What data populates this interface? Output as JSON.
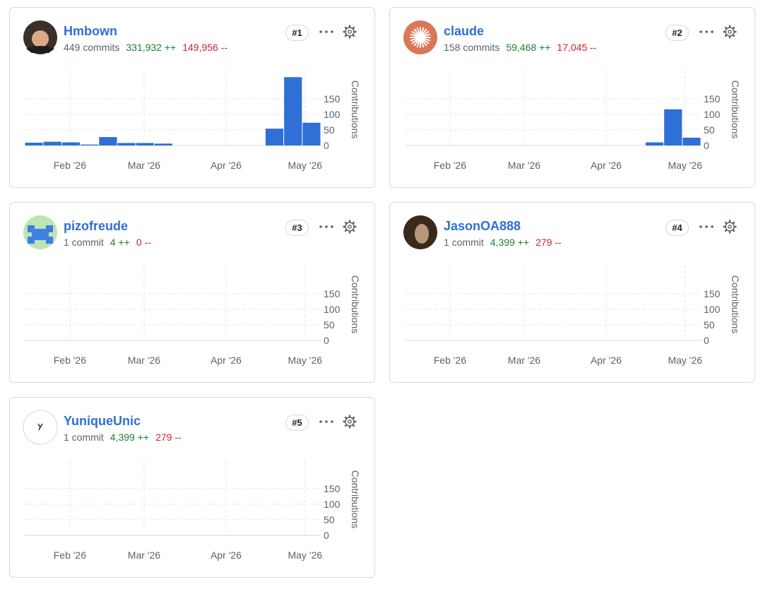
{
  "contributors": [
    {
      "name": "Hmbown",
      "commits": "449 commits",
      "additions": "331,932 ++",
      "deletions": "149,956 --",
      "rank": "#1"
    },
    {
      "name": "claude",
      "commits": "158 commits",
      "additions": "59,468 ++",
      "deletions": "17,045 --",
      "rank": "#2"
    },
    {
      "name": "pizofreude",
      "commits": "1 commit",
      "additions": "4 ++",
      "deletions": "0 --",
      "rank": "#3"
    },
    {
      "name": "JasonOA888",
      "commits": "1 commit",
      "additions": "4,399 ++",
      "deletions": "279 --",
      "rank": "#4"
    },
    {
      "name": "YuniqueUnic",
      "commits": "1 commit",
      "additions": "4,399 ++",
      "deletions": "279 --",
      "rank": "#5"
    }
  ],
  "chart_data": [
    {
      "type": "bar",
      "ylabel": "Contributions",
      "color": "#2f6fd6",
      "values": [
        9,
        12,
        10,
        3,
        27,
        8,
        8,
        6,
        0,
        0,
        0,
        0,
        0,
        54,
        219,
        73
      ],
      "xlim": [
        0,
        16
      ],
      "xticks": [
        {
          "value": 2.44,
          "label": "Feb '26"
        },
        {
          "value": 6.45,
          "label": "Mar '26"
        },
        {
          "value": 10.88,
          "label": "Apr '26"
        },
        {
          "value": 15.15,
          "label": "May '26"
        }
      ],
      "ylim": [
        0,
        240
      ],
      "yticks": [
        0,
        50,
        100,
        150
      ],
      "grid": true
    },
    {
      "type": "bar",
      "ylabel": "Contributions",
      "color": "#2f6fd6",
      "values": [
        0,
        0,
        0,
        0,
        0,
        0,
        0,
        0,
        0,
        0,
        0,
        0,
        0,
        10,
        116,
        25
      ],
      "xlim": [
        0,
        16
      ],
      "xticks": [
        {
          "value": 2.44,
          "label": "Feb '26"
        },
        {
          "value": 6.45,
          "label": "Mar '26"
        },
        {
          "value": 10.88,
          "label": "Apr '26"
        },
        {
          "value": 15.15,
          "label": "May '26"
        }
      ],
      "ylim": [
        0,
        240
      ],
      "yticks": [
        0,
        50,
        100,
        150
      ],
      "grid": true
    },
    {
      "type": "bar",
      "ylabel": "Contributions",
      "color": "#2f6fd6",
      "values": [
        0,
        0,
        0,
        0,
        0,
        0,
        0,
        0,
        0,
        0,
        0,
        0,
        0,
        0,
        0,
        0
      ],
      "xlim": [
        0,
        16
      ],
      "xticks": [
        {
          "value": 2.44,
          "label": "Feb '26"
        },
        {
          "value": 6.45,
          "label": "Mar '26"
        },
        {
          "value": 10.88,
          "label": "Apr '26"
        },
        {
          "value": 15.15,
          "label": "May '26"
        }
      ],
      "ylim": [
        0,
        240
      ],
      "yticks": [
        0,
        50,
        100,
        150
      ],
      "grid": true
    },
    {
      "type": "bar",
      "ylabel": "Contributions",
      "color": "#2f6fd6",
      "values": [
        0,
        0,
        0,
        0,
        0,
        0,
        0,
        0,
        0,
        0,
        0,
        0,
        0,
        0,
        0,
        0
      ],
      "xlim": [
        0,
        16
      ],
      "xticks": [
        {
          "value": 2.44,
          "label": "Feb '26"
        },
        {
          "value": 6.45,
          "label": "Mar '26"
        },
        {
          "value": 10.88,
          "label": "Apr '26"
        },
        {
          "value": 15.15,
          "label": "May '26"
        }
      ],
      "ylim": [
        0,
        240
      ],
      "yticks": [
        0,
        50,
        100,
        150
      ],
      "grid": true
    },
    {
      "type": "bar",
      "ylabel": "Contributions",
      "color": "#2f6fd6",
      "values": [
        0,
        0,
        0,
        0,
        0,
        0,
        0,
        0,
        0,
        0,
        0,
        0,
        0,
        0,
        0,
        0
      ],
      "xlim": [
        0,
        16
      ],
      "xticks": [
        {
          "value": 2.44,
          "label": "Feb '26"
        },
        {
          "value": 6.45,
          "label": "Mar '26"
        },
        {
          "value": 10.88,
          "label": "Apr '26"
        },
        {
          "value": 15.15,
          "label": "May '26"
        }
      ],
      "ylim": [
        0,
        240
      ],
      "yticks": [
        0,
        50,
        100,
        150
      ],
      "grid": true
    }
  ]
}
